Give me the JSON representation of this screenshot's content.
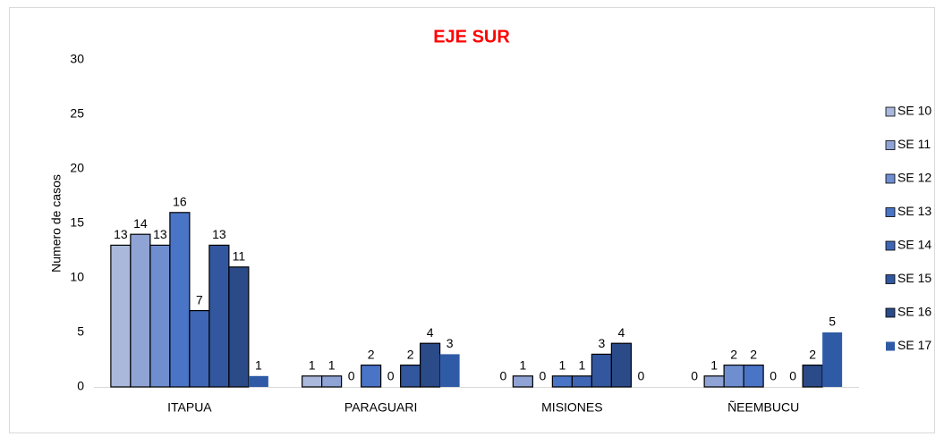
{
  "chart_data": {
    "type": "bar",
    "title": "EJE SUR",
    "y_label": "Numero de casos",
    "categories": [
      "ITAPUA",
      "PARAGUARI",
      "MISIONES",
      "ÑEEMBUCU"
    ],
    "series": [
      {
        "name": "SE 10",
        "color": "#aab8dc",
        "values": [
          13,
          1,
          0,
          0
        ]
      },
      {
        "name": "SE 11",
        "color": "#8fa3d5",
        "values": [
          14,
          1,
          1,
          1
        ]
      },
      {
        "name": "SE 12",
        "color": "#6e8ed0",
        "values": [
          13,
          0,
          0,
          2
        ]
      },
      {
        "name": "SE 13",
        "color": "#4a74c6",
        "values": [
          16,
          2,
          1,
          2
        ]
      },
      {
        "name": "SE 14",
        "color": "#3f66b4",
        "values": [
          7,
          0,
          1,
          0
        ]
      },
      {
        "name": "SE 15",
        "color": "#32579e",
        "values": [
          13,
          2,
          3,
          0
        ]
      },
      {
        "name": "SE 16",
        "color": "#2b4a88",
        "values": [
          11,
          4,
          4,
          2
        ]
      },
      {
        "name": "SE 17",
        "color": "#2f5aa6",
        "values": [
          1,
          3,
          0,
          5
        ]
      }
    ],
    "ylim": [
      0,
      30
    ],
    "yticks": [
      0,
      5,
      10,
      15,
      20,
      25,
      30
    ],
    "legend": "right"
  }
}
